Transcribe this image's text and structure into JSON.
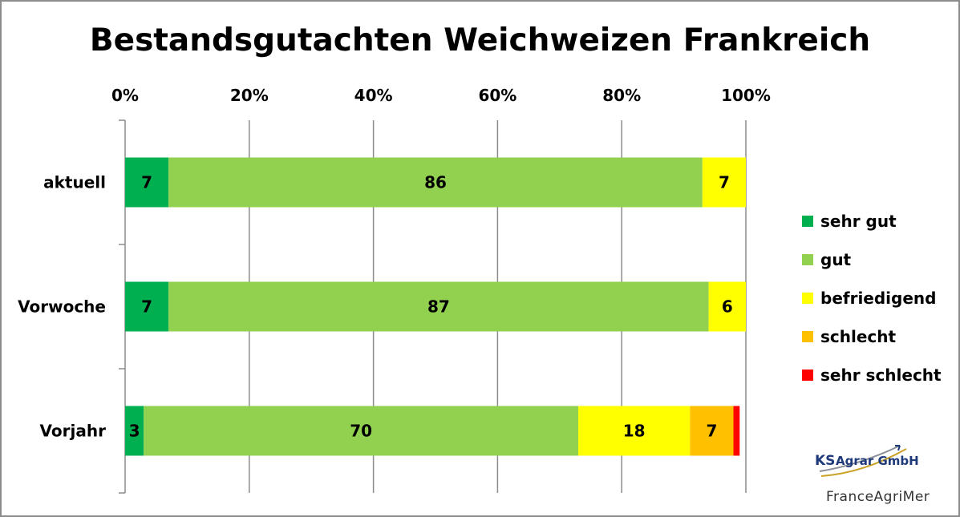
{
  "chart_data": {
    "type": "bar",
    "orientation": "horizontal",
    "stacked": true,
    "title": "Bestandsgutachten Weichweizen Frankreich",
    "categories": [
      "aktuell",
      "Vorwoche",
      "Vorjahr"
    ],
    "x_ticks": [
      "0%",
      "20%",
      "40%",
      "60%",
      "80%",
      "100%"
    ],
    "xlim": [
      0,
      100
    ],
    "xaxis_position": "top",
    "grid": true,
    "legend_position": "right",
    "series": [
      {
        "name": "sehr gut",
        "color": "#00b050",
        "values": [
          7,
          7,
          3
        ]
      },
      {
        "name": "gut",
        "color": "#92d050",
        "values": [
          86,
          87,
          70
        ]
      },
      {
        "name": "befriedigend",
        "color": "#ffff00",
        "values": [
          7,
          6,
          18
        ]
      },
      {
        "name": "schlecht",
        "color": "#ffc000",
        "values": [
          0,
          0,
          7
        ]
      },
      {
        "name": "sehr schlecht",
        "color": "#ff0000",
        "values": [
          0,
          0,
          1
        ]
      }
    ],
    "data_labels": [
      [
        "7",
        "86",
        "7",
        "",
        ""
      ],
      [
        "7",
        "87",
        "6",
        "",
        ""
      ],
      [
        "3",
        "70",
        "18",
        "7",
        ""
      ]
    ]
  },
  "branding": {
    "logo_ks": "KS",
    "logo_text": "Agrar GmbH",
    "source": "FranceAgriMer"
  }
}
